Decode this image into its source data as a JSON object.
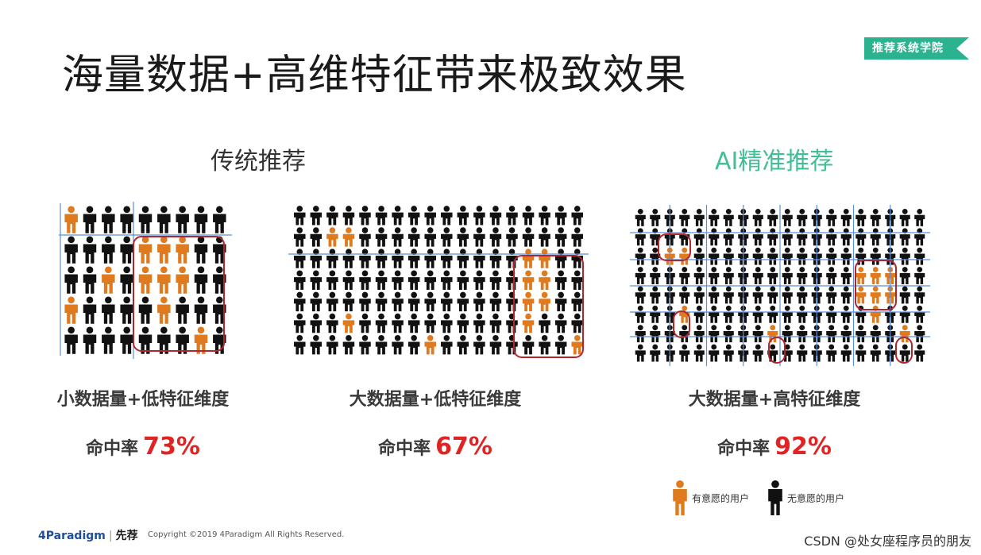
{
  "title": "海量数据+高维特征带来极致效果",
  "brand_tag": "推荐系统学院",
  "sections": {
    "traditional": "传统推荐",
    "ai": "AI精准推荐"
  },
  "colors": {
    "target_user": "#e07a1f",
    "non_target_user": "#111111",
    "grid_line": "#5b8fd6",
    "box": "#b0262d",
    "rate_value": "#e02424",
    "ai_accent": "#3fbf96",
    "brand": "#2bb38f"
  },
  "panels": [
    {
      "label": "小数据量+低特征维度",
      "rate_label": "命中率",
      "rate_value": "73%",
      "cols": 9,
      "rows": 5,
      "target_users": [
        [
          0,
          0
        ],
        [
          1,
          4
        ],
        [
          1,
          5
        ],
        [
          1,
          6
        ],
        [
          2,
          2
        ],
        [
          2,
          4
        ],
        [
          2,
          5
        ],
        [
          2,
          6
        ],
        [
          3,
          0
        ],
        [
          3,
          5
        ],
        [
          4,
          7
        ]
      ]
    },
    {
      "label": "大数据量+低特征维度",
      "rate_label": "命中率",
      "rate_value": "67%",
      "cols": 18,
      "rows": 7,
      "target_users": [
        [
          1,
          2
        ],
        [
          1,
          3
        ],
        [
          2,
          14
        ],
        [
          2,
          15
        ],
        [
          3,
          14
        ],
        [
          3,
          15
        ],
        [
          4,
          14
        ],
        [
          4,
          15
        ],
        [
          5,
          3
        ],
        [
          5,
          14
        ],
        [
          6,
          8
        ],
        [
          6,
          17
        ]
      ]
    },
    {
      "label": "大数据量+高特征维度",
      "rate_label": "命中率",
      "rate_value": "92%",
      "cols": 20,
      "rows": 8,
      "target_users": [
        [
          2,
          2
        ],
        [
          2,
          3
        ],
        [
          3,
          15
        ],
        [
          3,
          16
        ],
        [
          3,
          17
        ],
        [
          4,
          15
        ],
        [
          4,
          16
        ],
        [
          4,
          17
        ],
        [
          5,
          3
        ],
        [
          5,
          16
        ],
        [
          6,
          9
        ],
        [
          6,
          18
        ]
      ]
    }
  ],
  "legend": {
    "target": "有意愿的用户",
    "non_target": "无意愿的用户"
  },
  "footer": {
    "logo_text": "4Paradigm",
    "logo_cn": "先荐",
    "copyright": "Copyright ©2019 4Paradigm All Rights Reserved.",
    "watermark": "CSDN @处女座程序员的朋友"
  }
}
